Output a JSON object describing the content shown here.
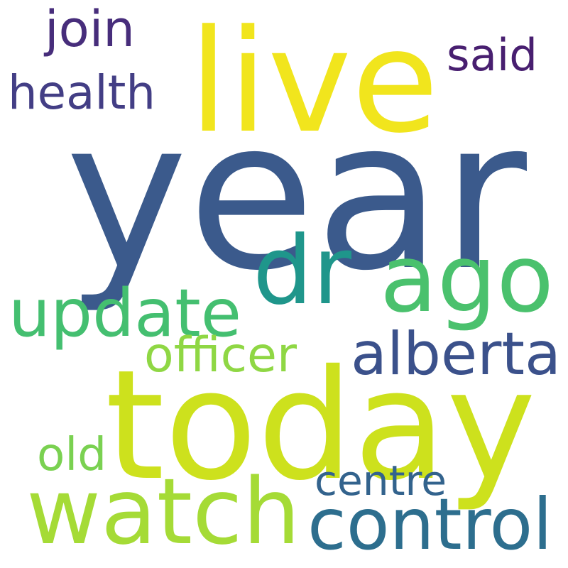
{
  "words": [
    {
      "id": "year",
      "text": "year",
      "color": "#3b5a8c"
    },
    {
      "id": "today",
      "text": "today",
      "color": "#cde11d"
    },
    {
      "id": "live",
      "text": "live",
      "color": "#f1e51d"
    },
    {
      "id": "ago",
      "text": "ago",
      "color": "#4ac16d"
    },
    {
      "id": "dr",
      "text": "dr",
      "color": "#1f968b"
    },
    {
      "id": "watch",
      "text": "watch",
      "color": "#a5db36"
    },
    {
      "id": "update",
      "text": "update",
      "color": "#44bf70"
    },
    {
      "id": "control",
      "text": "control",
      "color": "#2d6e8e"
    },
    {
      "id": "alberta",
      "text": "alberta",
      "color": "#3b518b"
    },
    {
      "id": "health",
      "text": "health",
      "color": "#433e85"
    },
    {
      "id": "join",
      "text": "join",
      "color": "#472d7b"
    },
    {
      "id": "said",
      "text": "said",
      "color": "#481f70"
    },
    {
      "id": "officer",
      "text": "officer",
      "color": "#8fd744"
    },
    {
      "id": "centre",
      "text": "centre",
      "color": "#33638d"
    },
    {
      "id": "old",
      "text": "old",
      "color": "#7ad151"
    }
  ]
}
